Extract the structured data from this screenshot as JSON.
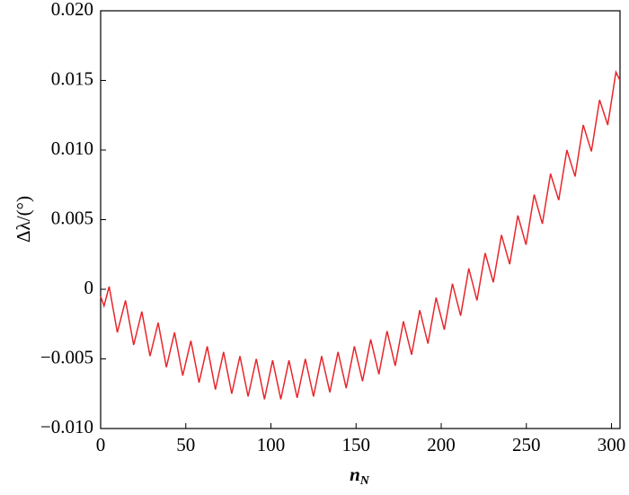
{
  "chart_data": {
    "type": "line",
    "y_label": "Δλ/(°)",
    "x_label": "n",
    "x_label_sub": "N",
    "x": [
      0,
      2,
      5,
      9.8,
      14.6,
      19.4,
      24.2,
      29,
      33.8,
      38.6,
      43.4,
      48.2,
      53,
      57.8,
      62.6,
      67.4,
      72.2,
      77,
      81.8,
      86.6,
      91.4,
      96.2,
      101,
      105.8,
      110.6,
      115.4,
      120.2,
      125,
      129.8,
      134.6,
      139.4,
      144.2,
      149,
      153.8,
      158.6,
      163.4,
      168.2,
      173,
      177.8,
      182.6,
      187.4,
      192.2,
      197,
      201.8,
      206.6,
      211.4,
      216.2,
      221,
      225.8,
      230.6,
      235.4,
      240.2,
      245,
      249.8,
      254.6,
      259.4,
      264.2,
      269,
      273.8,
      278.6,
      283.4,
      288.2,
      293,
      297.8,
      302.6,
      305
    ],
    "series": [
      {
        "color": "#e8262b",
        "values": [
          -0.0005,
          -0.0012,
          0.0002,
          -0.0031,
          -0.0008,
          -0.004,
          -0.0016,
          -0.0048,
          -0.0024,
          -0.0056,
          -0.0031,
          -0.0062,
          -0.0037,
          -0.0067,
          -0.0041,
          -0.0072,
          -0.0045,
          -0.0075,
          -0.0048,
          -0.0077,
          -0.005,
          -0.0079,
          -0.0051,
          -0.0079,
          -0.0051,
          -0.0078,
          -0.005,
          -0.0077,
          -0.0048,
          -0.0074,
          -0.0045,
          -0.0071,
          -0.0041,
          -0.0066,
          -0.0036,
          -0.0061,
          -0.003,
          -0.0055,
          -0.0023,
          -0.0047,
          -0.0015,
          -0.0039,
          -0.0006,
          -0.0029,
          0.0004,
          -0.0019,
          0.0015,
          -0.0008,
          0.0026,
          0.0005,
          0.0039,
          0.0018,
          0.0053,
          0.0032,
          0.0068,
          0.0047,
          0.0083,
          0.0064,
          0.01,
          0.0081,
          0.0118,
          0.0099,
          0.0136,
          0.0118,
          0.0156,
          0.015
        ]
      }
    ],
    "xlim": [
      0,
      305
    ],
    "ylim": [
      -0.01,
      0.02
    ],
    "xticks": [
      0,
      50,
      100,
      150,
      200,
      250,
      300
    ],
    "yticks": [
      {
        "value": -0.01,
        "label": "−0.010"
      },
      {
        "value": -0.005,
        "label": "−0.005"
      },
      0,
      {
        "value": 0.005,
        "label": "0.005"
      },
      {
        "value": 0.01,
        "label": "0.010"
      },
      {
        "value": 0.015,
        "label": "0.015"
      },
      {
        "value": 0.02,
        "label": "0.020"
      }
    ]
  }
}
